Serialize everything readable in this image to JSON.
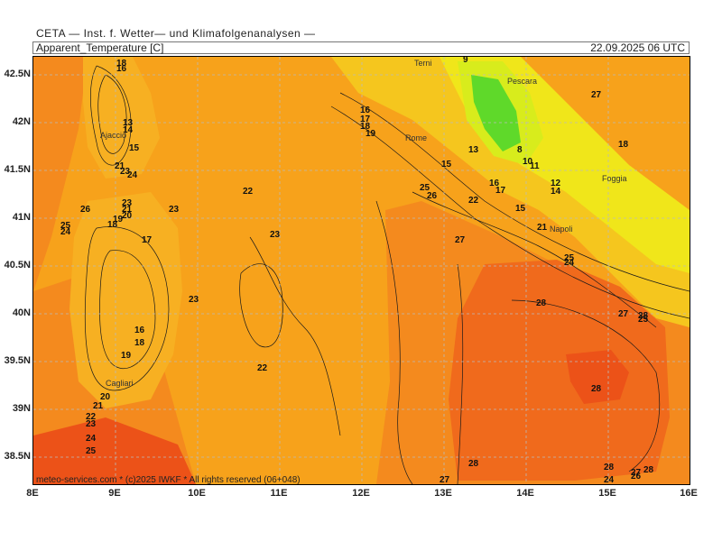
{
  "header": {
    "title": "CETA — Inst. f. Wetter— und Klimafolgenanalysen —",
    "variable": "Apparent_Temperature [C]",
    "timestamp": "22.09.2025 06 UTC"
  },
  "axes": {
    "lat_labels": [
      "42.5N",
      "42N",
      "41.5N",
      "41N",
      "40.5N",
      "40N",
      "39.5N",
      "39N",
      "38.5N"
    ],
    "lon_labels": [
      "8E",
      "9E",
      "10E",
      "11E",
      "12E",
      "13E",
      "14E",
      "15E",
      "16E"
    ]
  },
  "cities": [
    "Terni",
    "Pescara",
    "Ajaccio",
    "Rome",
    "Foggia",
    "Napoli",
    "Cagliari"
  ],
  "contour_labels": [
    "18",
    "16",
    "13",
    "14",
    "15",
    "21",
    "23",
    "24",
    "25",
    "26",
    "19",
    "17",
    "22",
    "20",
    "9",
    "13",
    "8",
    "10",
    "11",
    "12",
    "14",
    "15",
    "16",
    "17",
    "18",
    "19",
    "20",
    "21",
    "22",
    "23",
    "24",
    "25",
    "26",
    "27",
    "28"
  ],
  "colors": {
    "orange_light": "#f7a21b",
    "orange": "#f48a1e",
    "orange_deep": "#f06a1c",
    "red_orange": "#ec5218",
    "yellow": "#f0e61a",
    "yellow_green": "#d8ec1c",
    "green": "#5fd92a"
  },
  "credit": "meteo-services.com * (c)2025 IWKF * All rights reserved (06+048)"
}
